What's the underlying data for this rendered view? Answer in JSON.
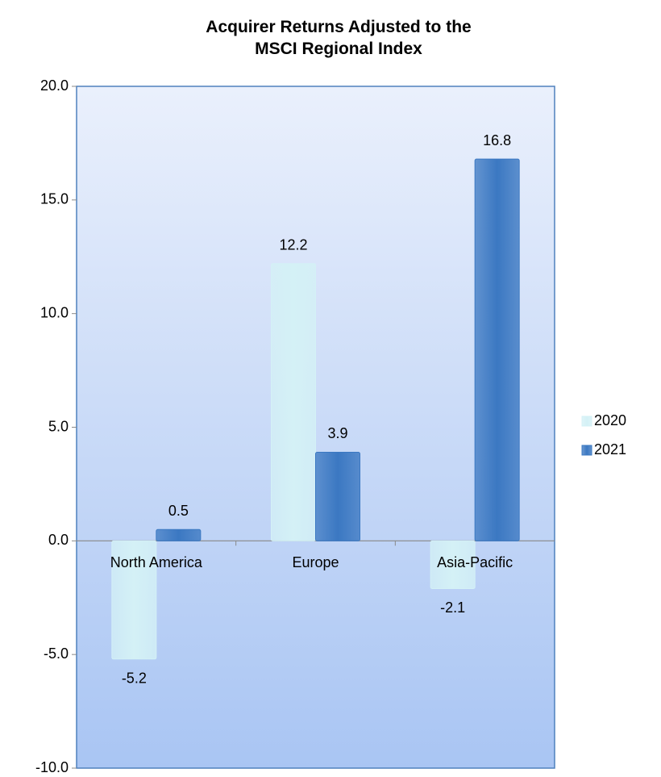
{
  "chart_data": {
    "type": "bar",
    "title": "Acquirer Returns Adjusted to the MSCI Regional Index",
    "categories": [
      "North America",
      "Europe",
      "Asia-Pacific"
    ],
    "series": [
      {
        "name": "2020",
        "color": "#d4f1f6",
        "values": [
          -5.2,
          12.2,
          -2.1
        ]
      },
      {
        "name": "2021",
        "color": "#3b78c2",
        "values": [
          0.5,
          3.9,
          16.8
        ]
      }
    ],
    "ylim": [
      -10,
      20
    ],
    "yticks": [
      {
        "value": -10,
        "label": "-10.0"
      },
      {
        "value": -5,
        "label": "-5.0"
      },
      {
        "value": 0,
        "label": "0.0"
      },
      {
        "value": 5,
        "label": "5.0"
      },
      {
        "value": 10,
        "label": "10.0"
      },
      {
        "value": 15,
        "label": "15.0"
      },
      {
        "value": 20,
        "label": "20.0"
      }
    ],
    "legend": "right"
  }
}
